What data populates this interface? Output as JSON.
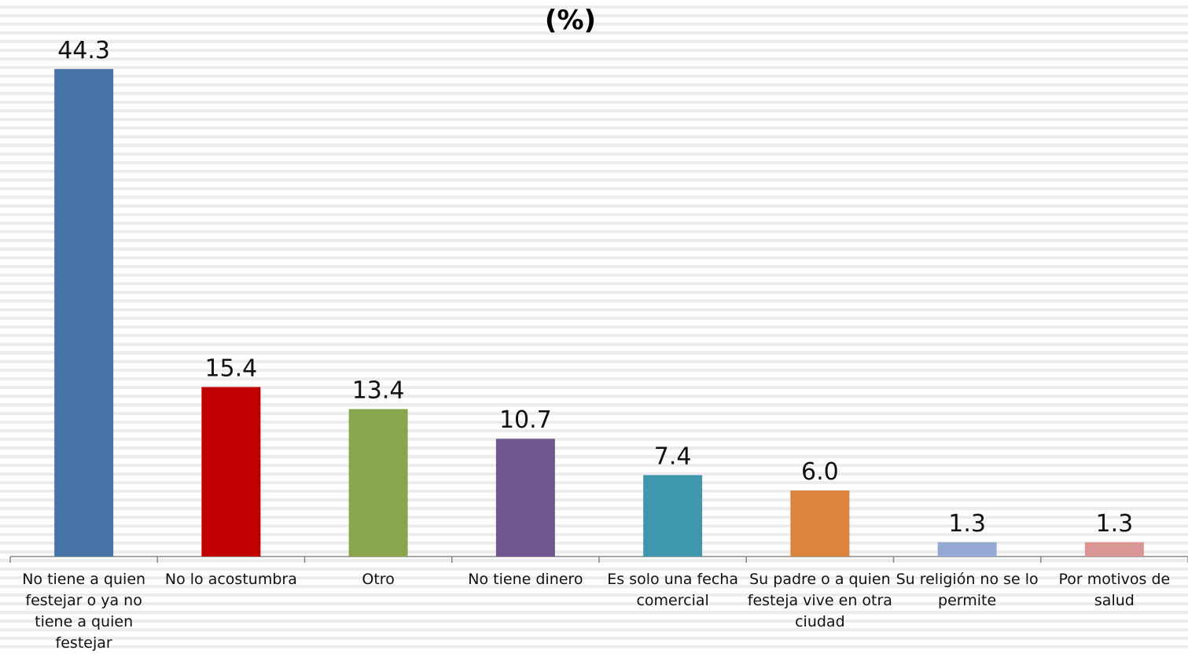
{
  "chart_data": {
    "type": "bar",
    "title": "(%)",
    "xlabel": "",
    "ylabel": "",
    "ylim": [
      0,
      46
    ],
    "grid": false,
    "legend": "none",
    "categories": [
      "No tiene a quien festejar o ya no tiene a quien festejar",
      "No lo acostumbra",
      "Otro",
      "No tiene dinero",
      "Es solo una fecha comercial",
      "Su padre o a quien festeja vive en otra ciudad",
      "Su religión no se lo permite",
      "Por motivos de salud"
    ],
    "values": [
      44.3,
      15.4,
      13.4,
      10.7,
      7.4,
      6.0,
      1.3,
      1.3
    ],
    "value_labels": [
      "44.3",
      "15.4",
      "13.4",
      "10.7",
      "7.4",
      "6.0",
      "1.3",
      "1.3"
    ],
    "colors": [
      "#4573a7",
      "#c00000",
      "#8aa64d",
      "#71578f",
      "#3f97ae",
      "#db843d",
      "#94a9d3",
      "#d99694"
    ]
  }
}
